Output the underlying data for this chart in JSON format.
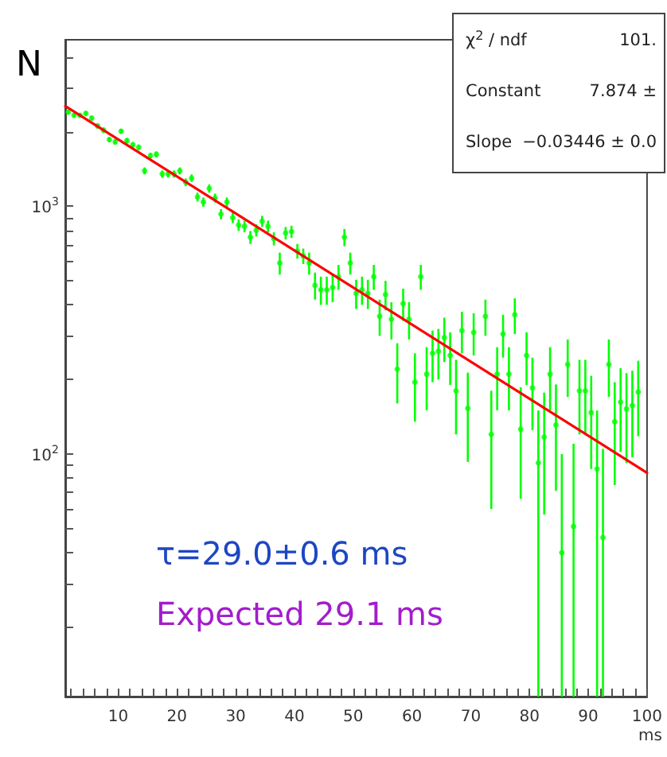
{
  "chart_data": {
    "type": "scatter",
    "ylabel": "N",
    "xlabel": "ms",
    "annotations": [
      "χ$^{2}$ / ndf",
      "101.",
      "Constant",
      "7.874 ±",
      "Slope",
      "−0.03446 ± 0.0",
      "τ=29.0±0.6 ms",
      "Expected 29.1 ms"
    ],
    "xlim": [
      1,
      100
    ],
    "xticks": [
      {
        "value": 2,
        "label": null
      },
      {
        "value": 4,
        "label": null
      },
      {
        "value": 6,
        "label": null
      },
      {
        "value": 8,
        "label": null
      },
      10,
      {
        "value": 12,
        "label": null
      },
      {
        "value": 14,
        "label": null
      },
      {
        "value": 16,
        "label": null
      },
      {
        "value": 18,
        "label": null
      },
      20,
      {
        "value": 22,
        "label": null
      },
      {
        "value": 24,
        "label": null
      },
      {
        "value": 26,
        "label": null
      },
      {
        "value": 28,
        "label": null
      },
      30,
      {
        "value": 32,
        "label": null
      },
      {
        "value": 34,
        "label": null
      },
      {
        "value": 36,
        "label": null
      },
      {
        "value": 38,
        "label": null
      },
      40,
      {
        "value": 42,
        "label": null
      },
      {
        "value": 44,
        "label": null
      },
      {
        "value": 46,
        "label": null
      },
      {
        "value": 48,
        "label": null
      },
      50,
      {
        "value": 52,
        "label": null
      },
      {
        "value": 54,
        "label": null
      },
      {
        "value": 56,
        "label": null
      },
      {
        "value": 58,
        "label": null
      },
      60,
      {
        "value": 62,
        "label": null
      },
      {
        "value": 64,
        "label": null
      },
      {
        "value": 66,
        "label": null
      },
      {
        "value": 68,
        "label": null
      },
      70,
      {
        "value": 72,
        "label": null
      },
      {
        "value": 74,
        "label": null
      },
      {
        "value": 76,
        "label": null
      },
      {
        "value": 78,
        "label": null
      },
      80,
      {
        "value": 82,
        "label": null
      },
      {
        "value": 84,
        "label": null
      },
      {
        "value": 86,
        "label": null
      },
      {
        "value": 88,
        "label": null
      },
      90,
      {
        "value": 92,
        "label": null
      },
      {
        "value": 94,
        "label": null
      },
      {
        "value": 96,
        "label": null
      },
      {
        "value": 98,
        "label": null
      },
      100
    ],
    "ylim": [
      10.5,
      4700
    ],
    "log": true,
    "yticks": [
      {
        "value": 20,
        "label": null
      },
      {
        "value": 30,
        "label": null
      },
      {
        "value": 40,
        "label": null
      },
      {
        "value": 50,
        "label": null
      },
      {
        "value": 60,
        "label": null
      },
      {
        "value": 70,
        "label": null
      },
      {
        "value": 80,
        "label": null
      },
      {
        "value": 90,
        "label": null
      },
      {
        "value": 100,
        "label": "10$^{2}$"
      },
      {
        "value": 200,
        "label": null
      },
      {
        "value": 300,
        "label": null
      },
      {
        "value": 400,
        "label": null
      },
      {
        "value": 500,
        "label": null
      },
      {
        "value": 600,
        "label": null
      },
      {
        "value": 700,
        "label": null
      },
      {
        "value": 800,
        "label": null
      },
      {
        "value": 900,
        "label": null
      },
      {
        "value": 1000,
        "label": "10$^{3}$"
      },
      {
        "value": 2000,
        "label": null
      },
      {
        "value": 3000,
        "label": null
      },
      {
        "value": 4000,
        "label": null
      }
    ],
    "marker": "circle",
    "series": [
      {
        "color": "#00ff00",
        "x": [
          1.5,
          2.5,
          3.5,
          4.5,
          5.5,
          6.5,
          7.5,
          8.5,
          9.5,
          10.5,
          11.5,
          12.5,
          13.5,
          14.5,
          15.5,
          16.5,
          17.5,
          18.5,
          19.5,
          20.5,
          21.5,
          22.5,
          23.5,
          24.5,
          25.5,
          26.5,
          27.5,
          28.5,
          29.5,
          30.5,
          31.5,
          32.5,
          33.5,
          34.5,
          35.5,
          36.5,
          37.5,
          38.5,
          39.5,
          40.5,
          41.5,
          42.5,
          43.5,
          44.5,
          45.5,
          46.5,
          47.5,
          48.5,
          49.5,
          50.5,
          51.5,
          52.5,
          53.5,
          54.5,
          55.5,
          56.5,
          57.5,
          58.5,
          59.5,
          60.5,
          61.5,
          62.5,
          63.5,
          64.5,
          65.5,
          66.5,
          67.5,
          68.5,
          69.5,
          70.5,
          71.5,
          72.5,
          73.5,
          74.5,
          75.5,
          76.5,
          77.5,
          78.5,
          79.5,
          80.5,
          81.5,
          82.5,
          83.5,
          84.5,
          85.5,
          86.5,
          87.5,
          88.5,
          89.5,
          90.5,
          91.5,
          92.5,
          93.5,
          94.5,
          95.5,
          96.5,
          97.5,
          98.5
        ],
        "values": [
          2400,
          2330,
          2330,
          2370,
          2270,
          2110,
          2030,
          1860,
          1820,
          2010,
          1840,
          1770,
          1730,
          1390,
          1600,
          1620,
          1350,
          1350,
          1350,
          1390,
          1250,
          1300,
          1090,
          1040,
          1180,
          1080,
          930,
          1040,
          900,
          840,
          830,
          750,
          800,
          870,
          830,
          740,
          590,
          780,
          790,
          660,
          630,
          590,
          480,
          460,
          460,
          470,
          520,
          750,
          590,
          445,
          460,
          445,
          520,
          360,
          440,
          350,
          220,
          405,
          350,
          195,
          520,
          210,
          255,
          260,
          295,
          250,
          180,
          315,
          153,
          310,
          null,
          360,
          120,
          210,
          305,
          210,
          365,
          126,
          250,
          185,
          92,
          117,
          210,
          131,
          40,
          230,
          51,
          180,
          180,
          147,
          87,
          46,
          230,
          135,
          162,
          152,
          157,
          178
        ],
        "errors": [
          45,
          45,
          45,
          45,
          45,
          45,
          45,
          45,
          45,
          45,
          45,
          45,
          45,
          45,
          45,
          45,
          45,
          45,
          45,
          45,
          45,
          45,
          45,
          45,
          45,
          45,
          45,
          45,
          45,
          45,
          45,
          45,
          45,
          45,
          45,
          45,
          60,
          45,
          45,
          45,
          45,
          60,
          60,
          60,
          60,
          60,
          60,
          60,
          60,
          60,
          60,
          60,
          60,
          60,
          60,
          60,
          60,
          60,
          60,
          60,
          60,
          60,
          60,
          60,
          60,
          60,
          60,
          60,
          60,
          60,
          null,
          60,
          60,
          60,
          60,
          60,
          60,
          60,
          60,
          60,
          [
            10.5,
            150
          ],
          60,
          60,
          60,
          [
            10.5,
            100
          ],
          60,
          [
            10.5,
            110
          ],
          60,
          60,
          60,
          [
            10.5,
            150
          ],
          [
            10.5,
            105
          ],
          60,
          60,
          60,
          60,
          60,
          60
        ]
      },
      {
        "type": "line",
        "color": "#ff0000",
        "marker": "none",
        "x": [
          1,
          100
        ],
        "values": [
          2540,
          84
        ]
      }
    ]
  }
}
